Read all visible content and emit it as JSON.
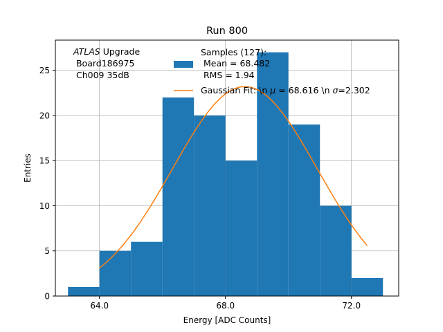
{
  "chart_data": {
    "type": "bar",
    "title": "Run 800",
    "xlabel": "Energy [ADC Counts]",
    "ylabel": "Entries",
    "xlim": [
      62.6,
      73.5
    ],
    "ylim": [
      0,
      28.35
    ],
    "xticks": [
      64.0,
      68.0,
      72.0
    ],
    "xtick_labels": [
      "64.0",
      "68.0",
      "72.0"
    ],
    "yticks": [
      0,
      5,
      10,
      15,
      20,
      25
    ],
    "grid": true,
    "histogram": {
      "name": "Samples",
      "bin_edges": [
        63.0,
        64.0,
        65.0,
        66.0,
        67.0,
        68.0,
        69.0,
        70.0,
        71.0,
        72.0,
        73.0
      ],
      "counts": [
        1,
        5,
        6,
        22,
        20,
        15,
        27,
        19,
        10,
        2
      ],
      "color": "#1f77b4"
    },
    "fit": {
      "name": "Gaussian Fit",
      "mu": 68.616,
      "sigma": 2.302,
      "amplitude": 23.2,
      "x_range": [
        64.0,
        72.5
      ],
      "color": "#ff7f0e"
    },
    "annotation": {
      "italic": "ATLAS",
      "line1_rest": " Upgrade",
      "line2": " Board186975",
      "line3": " Ch009 35dB"
    },
    "legend": {
      "position": "top-right",
      "samples_line1": "Samples (127):",
      "samples_line2": " Mean = 68.482",
      "samples_line3": " RMS = 1.94",
      "fit_prefix": "Gaussian Fit: \\n ",
      "fit_mu_symbol": "μ",
      "fit_mid": " = 68.616 \\n ",
      "fit_sigma_symbol": "σ",
      "fit_suffix": "=2.302"
    }
  }
}
